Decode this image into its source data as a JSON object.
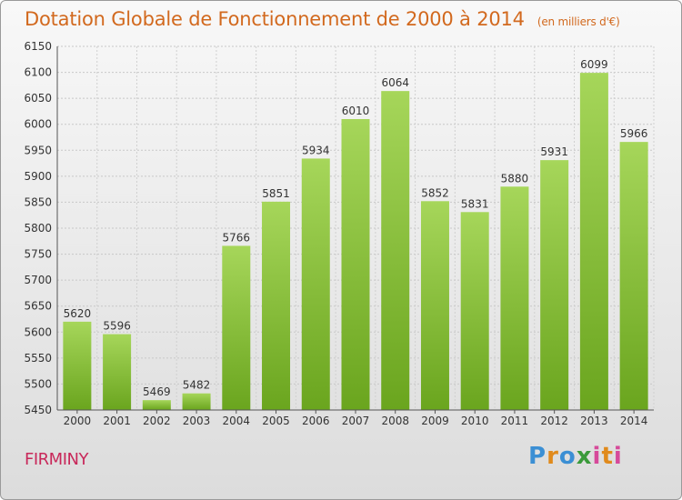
{
  "title": "Dotation Globale de Fonctionnement de 2000 à 2014",
  "unit": "(en milliers d'€)",
  "city": "FIRMINY",
  "logo": {
    "text": "Proxiti",
    "colors": [
      "#3b8fd4",
      "#e08a1c",
      "#3a9a3a",
      "#d64a9a"
    ]
  },
  "chart_data": {
    "type": "bar",
    "categories": [
      "2000",
      "2001",
      "2002",
      "2003",
      "2004",
      "2005",
      "2006",
      "2007",
      "2008",
      "2009",
      "2010",
      "2011",
      "2012",
      "2013",
      "2014"
    ],
    "values": [
      5620,
      5596,
      5469,
      5482,
      5766,
      5851,
      5934,
      6010,
      6064,
      5852,
      5831,
      5880,
      5931,
      6099,
      5966
    ],
    "ylim": [
      5450,
      6150
    ],
    "yticks": [
      5450,
      5500,
      5550,
      5600,
      5650,
      5700,
      5750,
      5800,
      5850,
      5900,
      5950,
      6000,
      6050,
      6100,
      6150
    ],
    "grid": true,
    "bar_color": "#8cc63f"
  }
}
